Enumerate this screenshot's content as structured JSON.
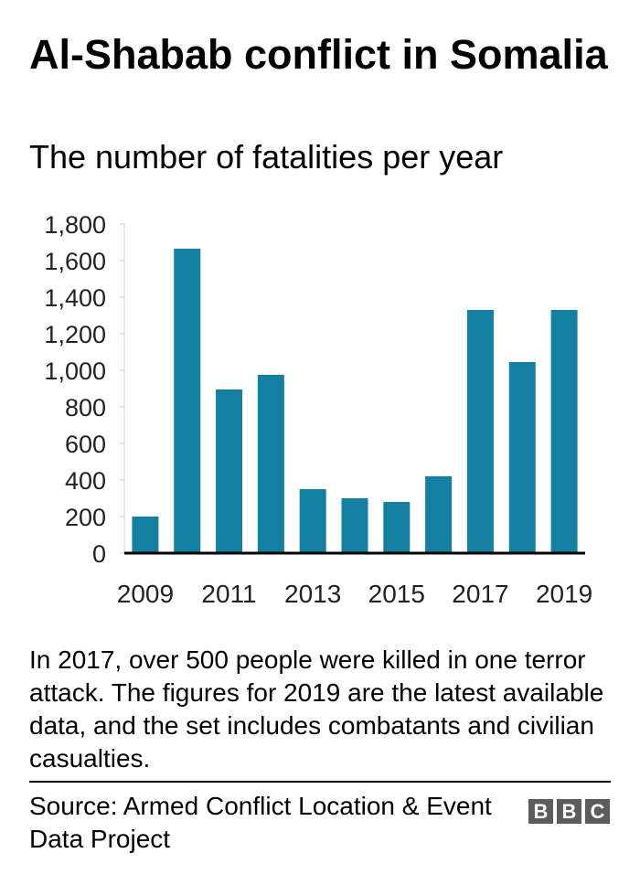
{
  "header": {
    "title": "Al-Shabab conflict in Somalia",
    "subtitle": "The number of fatalities per year"
  },
  "chart_data": {
    "type": "bar",
    "categories": [
      "2009",
      "2010",
      "2011",
      "2012",
      "2013",
      "2014",
      "2015",
      "2016",
      "2017",
      "2018",
      "2019"
    ],
    "x_tick_labels": [
      "2009",
      "2011",
      "2013",
      "2015",
      "2017",
      "2019"
    ],
    "values": [
      200,
      1665,
      895,
      975,
      350,
      300,
      280,
      420,
      1330,
      1045,
      1330
    ],
    "y_ticks": [
      0,
      200,
      400,
      600,
      800,
      1000,
      1200,
      1400,
      1600,
      1800
    ],
    "y_tick_labels": [
      "0",
      "200",
      "400",
      "600",
      "800",
      "1,000",
      "1,200",
      "1,400",
      "1,600",
      "1,800"
    ],
    "ylim": [
      0,
      1800
    ],
    "bar_color": "#1380A1",
    "grid": false
  },
  "note": "In 2017, over 500 people were killed in one terror attack. The figures for 2019 are the latest available data, and the set includes combatants and civilian casualties.",
  "footer": {
    "source": "Source: Armed Conflict Location & Event Data Project",
    "logo_letters": [
      "B",
      "B",
      "C"
    ]
  }
}
